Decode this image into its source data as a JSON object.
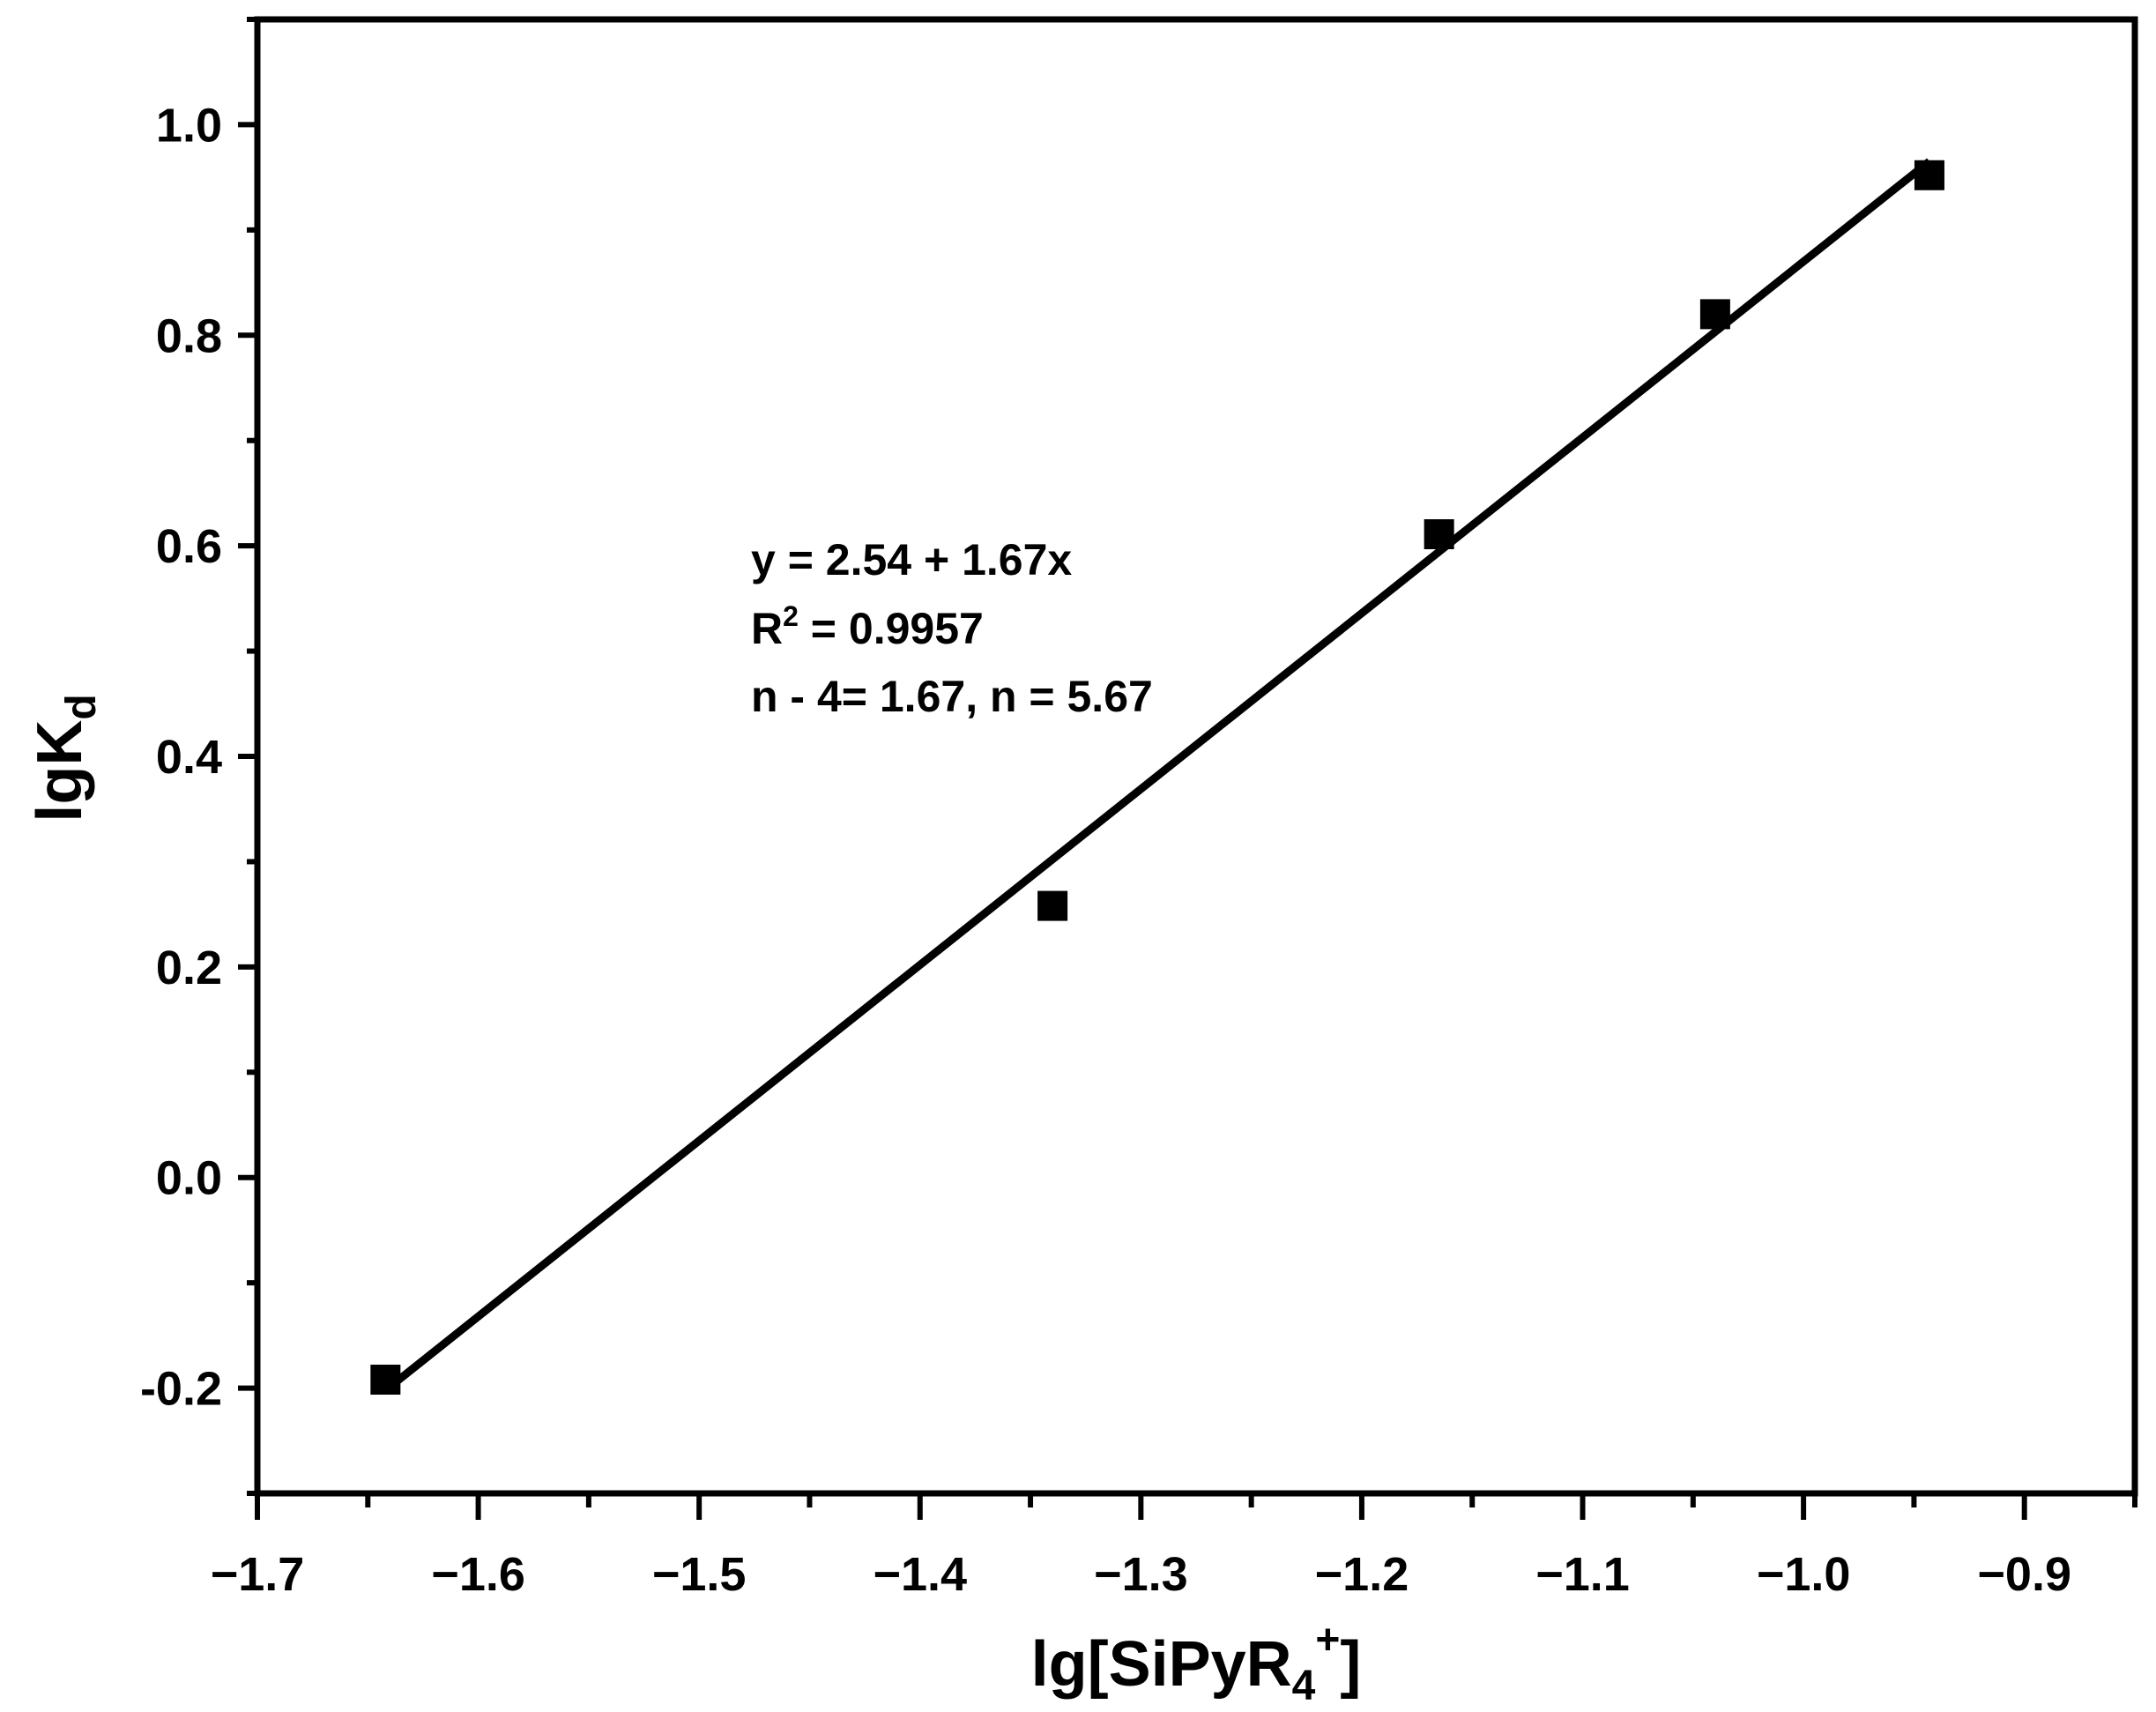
{
  "chart_data": {
    "type": "scatter",
    "title": "",
    "xlabel": {
      "base": "lg[SiPyR",
      "sub": "4",
      "sup": "+",
      "close": "]"
    },
    "ylabel": {
      "base": "lgK",
      "sub": "d"
    },
    "xlim": [
      -1.7,
      -0.85
    ],
    "ylim": [
      -0.3,
      1.1
    ],
    "x_ticks": [
      -1.7,
      -1.6,
      -1.5,
      -1.4,
      -1.3,
      -1.2,
      -1.1,
      -1.0,
      -0.9
    ],
    "x_tick_labels": [
      "−1.7",
      "−1.6",
      "−1.5",
      "−1.4",
      "−1.3",
      "−1.2",
      "−1.1",
      "−1.0",
      "−0.9"
    ],
    "y_ticks": [
      -0.2,
      0.0,
      0.2,
      0.4,
      0.6,
      0.8,
      1.0
    ],
    "y_tick_labels": [
      "-0.2",
      "0.0",
      "0.2",
      "0.4",
      "0.6",
      "0.8",
      "1.0"
    ],
    "grid": false,
    "series": [
      {
        "points": [
          {
            "x": -1.642,
            "y": -0.192
          },
          {
            "x": -1.34,
            "y": 0.258
          },
          {
            "x": -1.165,
            "y": 0.611
          },
          {
            "x": -1.04,
            "y": 0.82
          },
          {
            "x": -0.943,
            "y": 0.952
          }
        ],
        "marker": "square",
        "color": "#000000"
      }
    ],
    "fit_line": {
      "intercept": 2.54,
      "slope": 1.67,
      "x_range": [
        -1.642,
        -0.943
      ],
      "color": "#000000"
    },
    "annotations": [
      {
        "line1": "y = 2.54 + 1.67x"
      },
      {
        "r_prefix": "R",
        "r_sup": "2",
        "r_rest": " = 0.9957"
      },
      {
        "line3": "n - 4= 1.67, n = 5.67"
      }
    ]
  }
}
